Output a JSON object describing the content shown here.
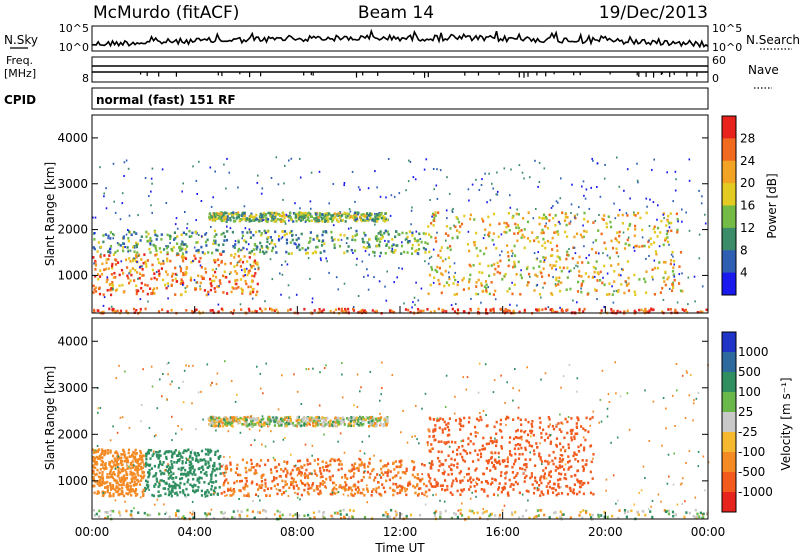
{
  "header": {
    "station": "McMurdo (fitACF)",
    "beam": "Beam 14",
    "date": "19/Dec/2013"
  },
  "noise_panel": {
    "left_label": "N.Sky",
    "right_label": "N.Search",
    "left_ticks": [
      "10^5",
      "10^0"
    ],
    "right_ticks": [
      "10^5",
      "10^0"
    ]
  },
  "freq_panel": {
    "left_label_line1": "Freq.",
    "left_label_line2": "[MHz]",
    "left_tick_top": "",
    "left_tick_bottom": "8",
    "right_label": "Nave",
    "right_ticks": [
      "60",
      "0"
    ]
  },
  "cpid": {
    "label": "CPID",
    "value": "normal (fast) 151 RF"
  },
  "chart_data": [
    {
      "type": "heatmap",
      "title": "",
      "xlabel": "",
      "ylabel": "Slant Range [km]",
      "ylim": [
        180,
        4500
      ],
      "yticks": [
        "1000",
        "2000",
        "3000",
        "4000"
      ],
      "xlim": [
        0,
        24
      ],
      "colorbar": {
        "label": "Power [dB]",
        "ticks": [
          "4",
          "8",
          "12",
          "16",
          "20",
          "24",
          "28"
        ],
        "colors": [
          "#1a1aee",
          "#2f5fb3",
          "#3c8c6a",
          "#74bb46",
          "#e4cb23",
          "#f3a323",
          "#f26a1f",
          "#e8231d"
        ]
      },
      "echo_bands": [
        {
          "range_km": [
            200,
            300
          ],
          "hours": [
            0,
            24
          ],
          "power_db": 28
        },
        {
          "range_km": [
            600,
            1500
          ],
          "hours": [
            0,
            6.5
          ],
          "power_db": 24
        },
        {
          "range_km": [
            1500,
            2000
          ],
          "hours": [
            0,
            13
          ],
          "power_db": 12
        },
        {
          "range_km": [
            2200,
            2400
          ],
          "hours": [
            4.5,
            11.5
          ],
          "power_db": 14
        },
        {
          "range_km": [
            600,
            2400
          ],
          "hours": [
            13,
            23
          ],
          "power_db": 20
        }
      ]
    },
    {
      "type": "heatmap",
      "title": "",
      "xlabel": "Time UT",
      "ylabel": "Slant Range [km]",
      "ylim": [
        180,
        4500
      ],
      "yticks": [
        "1000",
        "2000",
        "3000",
        "4000"
      ],
      "xticks": [
        "00:00",
        "04:00",
        "08:00",
        "12:00",
        "16:00",
        "20:00",
        "00:00"
      ],
      "colorbar": {
        "label": "Velocity [m s⁻¹]",
        "ticks": [
          "1000",
          "500",
          "100",
          "25",
          "-25",
          "-100",
          "-500",
          "-1000"
        ],
        "colors": [
          "#2035c7",
          "#2f6a9e",
          "#2f8f60",
          "#6ab84a",
          "#c9c9c9",
          "#f6b82e",
          "#f38a24",
          "#f25a1e",
          "#e6231d"
        ]
      },
      "echo_bands": [
        {
          "range_km": [
            200,
            400
          ],
          "hours": [
            0,
            24
          ],
          "velocity": 0
        },
        {
          "range_km": [
            700,
            1700
          ],
          "hours": [
            2,
            5
          ],
          "velocity": 200
        },
        {
          "range_km": [
            700,
            1700
          ],
          "hours": [
            0,
            2
          ],
          "velocity": -200
        },
        {
          "range_km": [
            700,
            1500
          ],
          "hours": [
            5,
            13
          ],
          "velocity": -300
        },
        {
          "range_km": [
            2200,
            2400
          ],
          "hours": [
            4.5,
            11.5
          ],
          "velocity": 0
        },
        {
          "range_km": [
            700,
            2400
          ],
          "hours": [
            13,
            19.5
          ],
          "velocity": -500
        }
      ]
    }
  ]
}
